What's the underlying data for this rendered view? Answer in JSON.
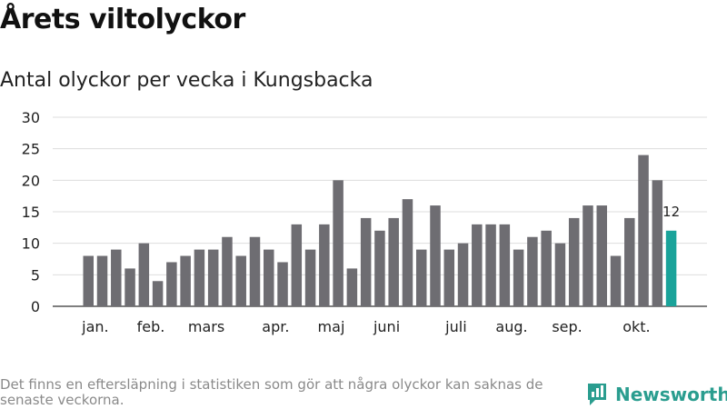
{
  "title": "Årets viltolyckor",
  "subtitle": "Antal olyckor per vecka i Kungsbacka",
  "footnote": "Det finns en eftersläpning i statistiken som gör att några olyckor kan saknas de senaste veckorna.",
  "brand": {
    "name": "Newsworthy",
    "icon": "bar-chart-logo-icon",
    "color": "#2a9d8f"
  },
  "chart_data": {
    "type": "bar",
    "xlabel": "",
    "ylabel": "",
    "ylim": [
      0,
      30
    ],
    "yticks": [
      0,
      5,
      10,
      15,
      20,
      25,
      30
    ],
    "grid": true,
    "bar_color": "#6e6d72",
    "highlight_color": "#1aa39a",
    "values": [
      8,
      8,
      9,
      6,
      10,
      4,
      7,
      8,
      9,
      9,
      11,
      8,
      11,
      9,
      7,
      13,
      9,
      13,
      20,
      6,
      14,
      12,
      14,
      17,
      9,
      16,
      9,
      10,
      13,
      13,
      13,
      9,
      11,
      12,
      10,
      14,
      16,
      16,
      8,
      14,
      24,
      20,
      12
    ],
    "highlight_index": 42,
    "highlight_label": "12",
    "month_labels": [
      {
        "label": "jan.",
        "week_index": 0.5
      },
      {
        "label": "feb.",
        "week_index": 4.5
      },
      {
        "label": "mars",
        "week_index": 8.5
      },
      {
        "label": "apr.",
        "week_index": 13.5
      },
      {
        "label": "maj",
        "week_index": 17.5
      },
      {
        "label": "juni",
        "week_index": 21.5
      },
      {
        "label": "juli",
        "week_index": 26.5
      },
      {
        "label": "aug.",
        "week_index": 30.5
      },
      {
        "label": "sep.",
        "week_index": 34.5
      },
      {
        "label": "okt.",
        "week_index": 39.5
      }
    ]
  }
}
